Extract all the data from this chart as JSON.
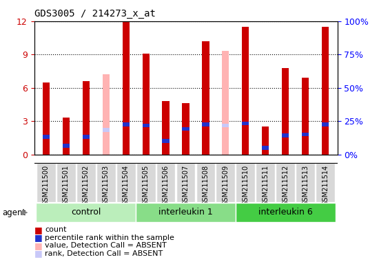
{
  "title": "GDS3005 / 214273_x_at",
  "samples": [
    "GSM211500",
    "GSM211501",
    "GSM211502",
    "GSM211503",
    "GSM211504",
    "GSM211505",
    "GSM211506",
    "GSM211507",
    "GSM211508",
    "GSM211509",
    "GSM211510",
    "GSM211511",
    "GSM211512",
    "GSM211513",
    "GSM211514"
  ],
  "agent_label": "agent",
  "red_values": [
    6.5,
    3.3,
    6.6,
    null,
    11.9,
    9.1,
    4.8,
    4.6,
    10.2,
    null,
    11.5,
    2.5,
    7.8,
    6.9,
    11.5
  ],
  "pink_values": [
    null,
    null,
    null,
    7.2,
    null,
    null,
    null,
    null,
    null,
    9.3,
    null,
    null,
    null,
    null,
    null
  ],
  "blue_values": [
    1.6,
    0.8,
    1.6,
    null,
    2.7,
    2.6,
    1.2,
    2.3,
    2.7,
    null,
    2.8,
    0.6,
    1.7,
    1.8,
    2.7
  ],
  "lavender_values": [
    null,
    null,
    null,
    2.2,
    null,
    null,
    null,
    null,
    null,
    2.6,
    null,
    null,
    null,
    null,
    null
  ],
  "ylim": [
    0,
    12
  ],
  "yticks": [
    0,
    3,
    6,
    9,
    12
  ],
  "y2lim": [
    0,
    100
  ],
  "y2ticks": [
    0,
    25,
    50,
    75,
    100
  ],
  "red_color": "#cc0000",
  "pink_color": "#ffb3b3",
  "blue_color": "#2233cc",
  "lavender_color": "#c8c8f8",
  "bar_width": 0.35,
  "group_defs": [
    [
      0,
      4,
      "control",
      "#bbeebb"
    ],
    [
      5,
      9,
      "interleukin 1",
      "#88dd88"
    ],
    [
      10,
      14,
      "interleukin 6",
      "#44cc44"
    ]
  ],
  "grid_linestyle": "dotted",
  "tick_label_fontsize": 7,
  "title_fontsize": 10,
  "legend_fontsize": 8,
  "group_label_fontsize": 9,
  "label_bg_color": "#d8d8d8"
}
